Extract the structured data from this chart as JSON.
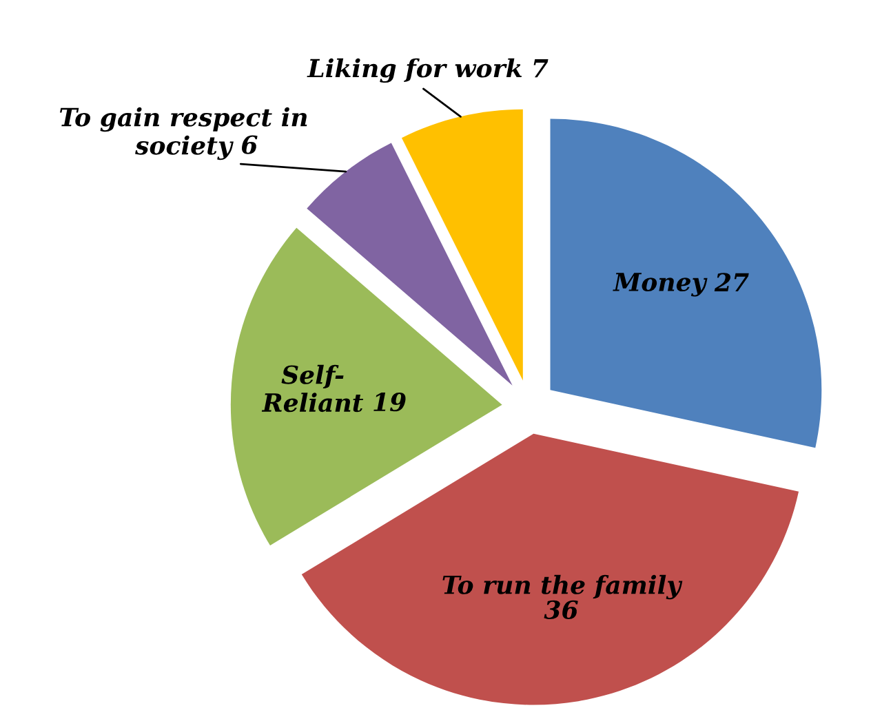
{
  "chart_data": {
    "type": "pie",
    "categories": [
      "Money",
      "To run the family",
      "Self-Reliant",
      "To gain respect in society",
      "Liking for work"
    ],
    "values": [
      27,
      36,
      19,
      6,
      7
    ],
    "colors": [
      "#4f81bd",
      "#c0504d",
      "#9bbb59",
      "#8064a2",
      "#ffc000"
    ],
    "data_labels": true
  }
}
